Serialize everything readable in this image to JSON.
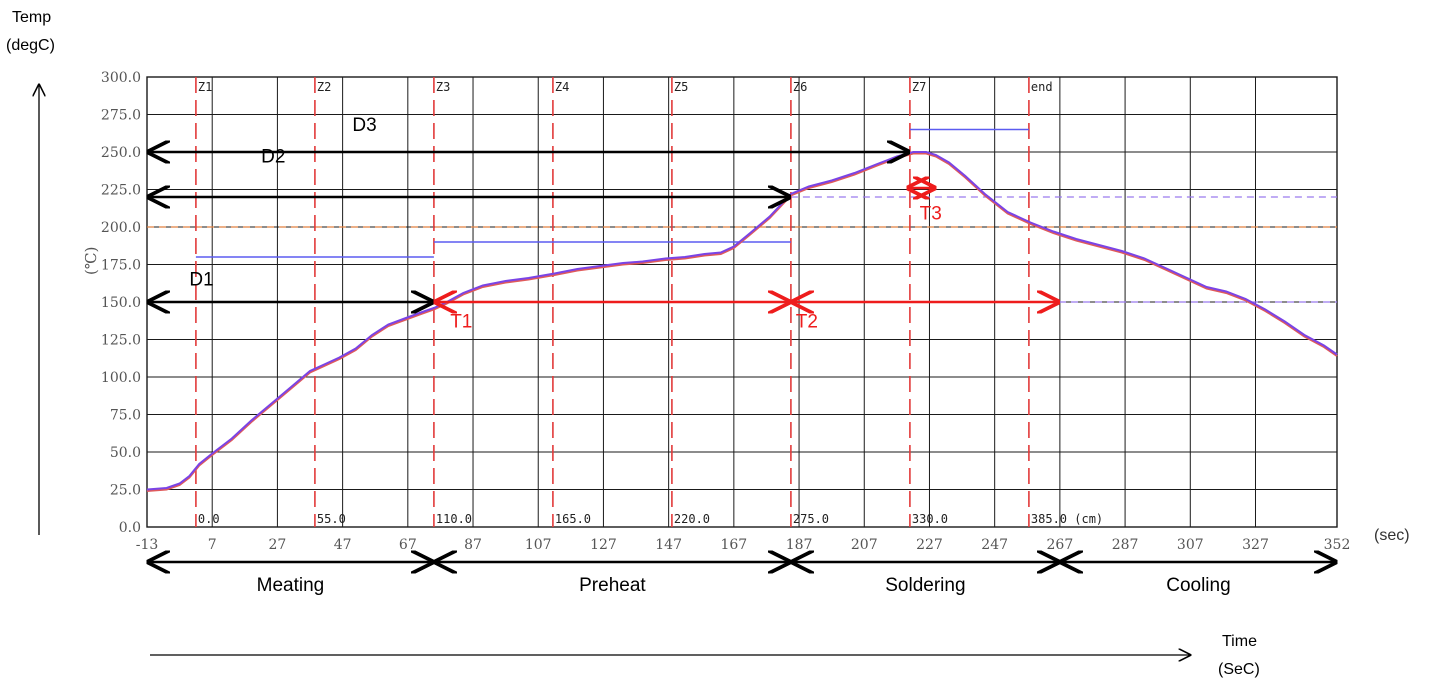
{
  "outer_axis": {
    "y_label_line1": "Temp",
    "y_label_line2": "(degC)",
    "x_label_line1": "Time",
    "x_label_line2": "(SeC)"
  },
  "colors": {
    "profile": "#7a44e6",
    "profile_shadow": "#e05a5a",
    "zone_line": "#e23a3a",
    "setpoint": "#5b5bf0",
    "ref_orange": "#e08040",
    "ref_purple_dash": "#9a7aee",
    "black_arrow": "#000000",
    "red_arrow": "#ee1c1c",
    "grid": "#1a1a1a"
  },
  "chart_data": {
    "type": "line",
    "ylabel": "(℃)",
    "x_unit": "(sec)",
    "xlim": [
      -13,
      352
    ],
    "ylim": [
      0,
      300
    ],
    "x_ticks": [
      "-13",
      "7",
      "27",
      "47",
      "67",
      "87",
      "107",
      "127",
      "147",
      "167",
      "187",
      "207",
      "227",
      "247",
      "267",
      "287",
      "307",
      "327",
      "352"
    ],
    "x_tick_values": [
      -13,
      7,
      27,
      47,
      67,
      87,
      107,
      127,
      147,
      167,
      187,
      207,
      227,
      247,
      267,
      287,
      307,
      327,
      352
    ],
    "y_ticks": [
      "0.0",
      "25.0",
      "50.0",
      "75.0",
      "100.0",
      "125.0",
      "150.0",
      "175.0",
      "200.0",
      "225.0",
      "250.0",
      "275.0",
      "300.0"
    ],
    "y_tick_values": [
      0,
      25,
      50,
      75,
      100,
      125,
      150,
      175,
      200,
      225,
      250,
      275,
      300
    ],
    "zones": [
      {
        "name": "Z1",
        "x": 2,
        "position": "0.0"
      },
      {
        "name": "Z2",
        "x": 38.5,
        "position": "55.0"
      },
      {
        "name": "Z3",
        "x": 75,
        "position": "110.0"
      },
      {
        "name": "Z4",
        "x": 111.5,
        "position": "165.0"
      },
      {
        "name": "Z5",
        "x": 148,
        "position": "220.0"
      },
      {
        "name": "Z6",
        "x": 184.5,
        "position": "275.0"
      },
      {
        "name": "Z7",
        "x": 221,
        "position": "330.0"
      },
      {
        "name": "end",
        "x": 257.5,
        "position": "385.0 (cm)"
      }
    ],
    "setpoints": [
      {
        "x1": 2,
        "x2": 75,
        "y": 180
      },
      {
        "x1": 75,
        "x2": 184.5,
        "y": 190
      },
      {
        "x1": 221,
        "x2": 257.5,
        "y": 265
      }
    ],
    "reference_lines": [
      {
        "y": 200,
        "style": "dashed",
        "color": "orange"
      },
      {
        "y": 150,
        "style": "dashed",
        "color": "purple"
      },
      {
        "y": 220,
        "x_from": 184.5,
        "style": "dashed",
        "color": "purple"
      }
    ],
    "series": [
      {
        "x": [
          -13,
          -7,
          -3,
          0,
          3,
          7,
          13,
          19,
          25,
          31,
          37,
          41,
          46,
          51,
          56,
          61,
          66,
          71,
          75,
          79,
          84,
          90,
          97,
          104,
          112,
          119,
          126,
          133,
          139,
          146,
          152,
          158,
          163,
          167,
          172,
          178,
          184.5,
          190,
          197,
          204,
          211,
          217,
          222,
          226,
          229,
          233,
          238,
          244,
          251,
          258,
          265,
          272,
          279,
          286,
          293,
          300,
          306,
          312,
          318,
          324,
          330,
          336,
          342,
          348,
          352
        ],
        "y": [
          25,
          26,
          29,
          34,
          42,
          49,
          59,
          71,
          82,
          93,
          104,
          108,
          113,
          119,
          128,
          135,
          139,
          143,
          146,
          150,
          156,
          161,
          164,
          166,
          169,
          172,
          174,
          176,
          177,
          179,
          180,
          182,
          183,
          187,
          196,
          207,
          222,
          227,
          231,
          236,
          242,
          247,
          250,
          250,
          248,
          243,
          234,
          222,
          210,
          203,
          197,
          192,
          188,
          184,
          179,
          172,
          166,
          160,
          157,
          152,
          145,
          137,
          128,
          121,
          115
        ]
      }
    ],
    "annotations": [
      {
        "label": "D1",
        "kind": "black",
        "x1": -13,
        "x2": 75,
        "y": 150,
        "text_x": 0,
        "text_y": 161
      },
      {
        "label": "D2",
        "kind": "black",
        "x1": -13,
        "x2": 184.5,
        "y": 220,
        "text_x": 22,
        "text_y": 243
      },
      {
        "label": "D3",
        "kind": "black",
        "x1": -13,
        "x2": 221,
        "y": 250,
        "text_x": 50,
        "text_y": 264
      },
      {
        "label": "T1",
        "kind": "red",
        "x1": 75,
        "x2": 184.5,
        "y": 150,
        "text_x": 80,
        "text_y": 133
      },
      {
        "label": "T2",
        "kind": "red",
        "x1": 184.5,
        "x2": 267,
        "y": 150,
        "text_x": 186,
        "text_y": 133
      },
      {
        "label": "T3",
        "kind": "red",
        "x1": 220,
        "x2": 229,
        "y": 226,
        "text_x": 224,
        "text_y": 205
      }
    ],
    "phases": [
      {
        "label": "Meating",
        "x1": -13,
        "x2": 75
      },
      {
        "label": "Preheat",
        "x1": 75,
        "x2": 184.5
      },
      {
        "label": "Soldering",
        "x1": 184.5,
        "x2": 267
      },
      {
        "label": "Cooling",
        "x1": 267,
        "x2": 352
      }
    ]
  }
}
